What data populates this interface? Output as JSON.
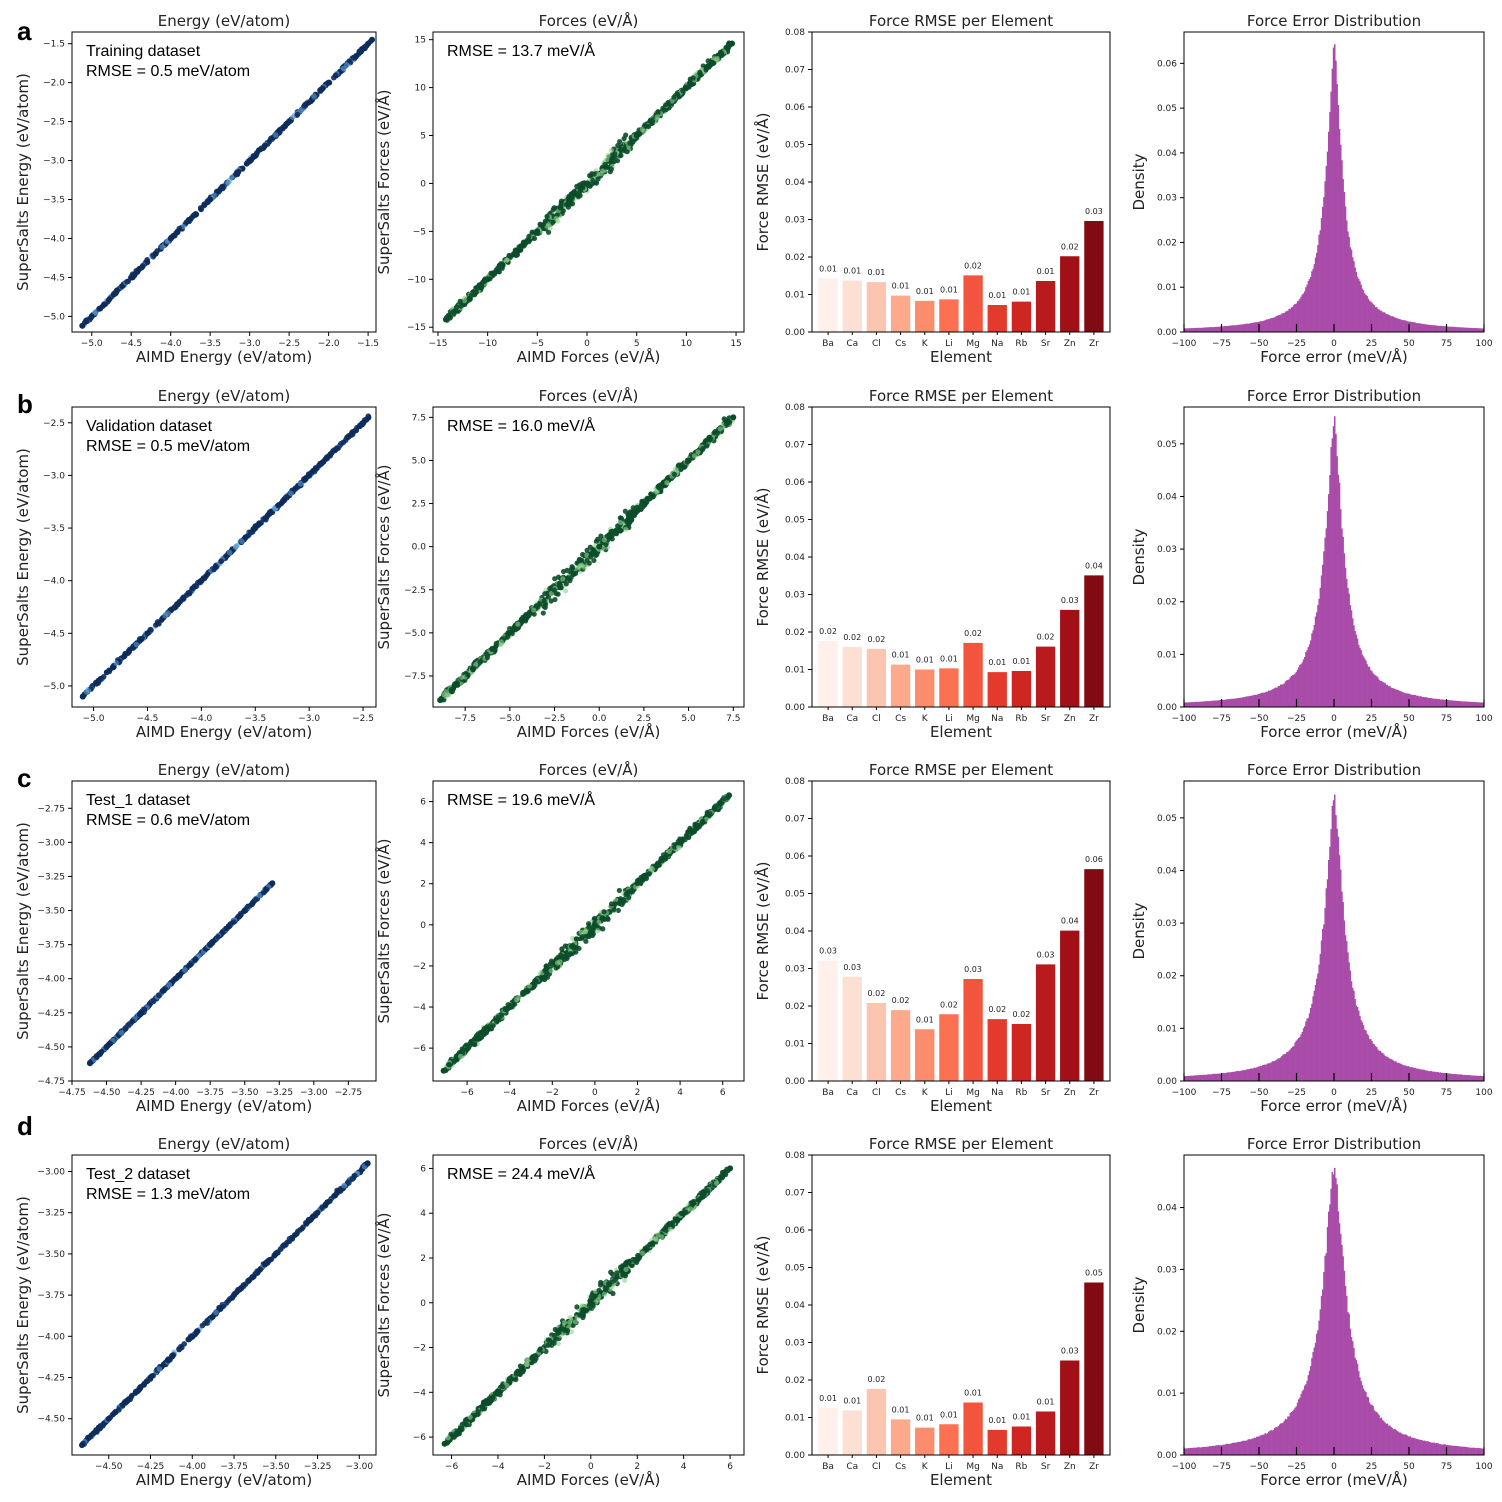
{
  "panel_letters": [
    "a",
    "b",
    "c",
    "d"
  ],
  "colors": {
    "energy_points": "#0d2c5c",
    "energy_light": "#5b9bd5",
    "force_points": "#0b4d2a",
    "force_light": "#8fd18c",
    "hist": "#a94ca9",
    "reds": [
      "#fff0eb",
      "#fde0d4",
      "#fcc5b0",
      "#fca98c",
      "#fc8d6c",
      "#fb7151",
      "#f2543d",
      "#e33a2d",
      "#d02623",
      "#b81a1d",
      "#a01016",
      "#820a12"
    ]
  },
  "chart_data": [
    {
      "id": "a-energy",
      "type": "scatter",
      "title": "Energy (eV/atom)",
      "xlabel": "AIMD Energy (eV/atom)",
      "ylabel": "SuperSalts Energy (eV/atom)",
      "xlim": [
        -5.25,
        -1.4
      ],
      "ylim": [
        -5.2,
        -1.35
      ],
      "xticks": [
        -5.0,
        -4.5,
        -4.0,
        -3.5,
        -3.0,
        -2.5,
        -2.0,
        -1.5
      ],
      "yticks": [
        -5.0,
        -4.5,
        -4.0,
        -3.5,
        -3.0,
        -2.5,
        -2.0,
        -1.5
      ],
      "x": [
        -5.12,
        -5.0,
        -4.5,
        -4.0,
        -3.5,
        -3.0,
        -2.5,
        -2.0,
        -1.5,
        -1.45
      ],
      "y": [
        -5.12,
        -5.0,
        -4.5,
        -4.0,
        -3.5,
        -3.0,
        -2.5,
        -2.0,
        -1.5,
        -1.45
      ],
      "annotation": [
        "Training dataset",
        "RMSE = 0.5 meV/atom"
      ],
      "diagonal": false
    },
    {
      "id": "a-forces",
      "type": "scatter",
      "title": "Forces (eV/Å)",
      "xlabel": "AIMD Forces (eV/Å)",
      "ylabel": "SuperSalts Forces (eV/Å)",
      "xlim": [
        -15.5,
        15.8
      ],
      "ylim": [
        -15.5,
        15.8
      ],
      "xticks": [
        -15,
        -10,
        -5,
        0,
        5,
        10,
        15
      ],
      "yticks": [
        -15,
        -10,
        -5,
        0,
        5,
        10,
        15
      ],
      "x": [
        -14.2,
        -10,
        -5,
        0,
        5,
        10,
        14.6
      ],
      "y": [
        -14.2,
        -10,
        -5,
        0,
        5,
        10,
        14.6
      ],
      "annotation": [
        "RMSE = 13.7 meV/Å"
      ],
      "diagonal": true
    },
    {
      "id": "a-rmse",
      "type": "bar",
      "title": "Force RMSE per Element",
      "xlabel": "Element",
      "ylabel": "Force RMSE (eV/Å)",
      "categories": [
        "Ba",
        "Ca",
        "Cl",
        "Cs",
        "K",
        "Li",
        "Mg",
        "Na",
        "Rb",
        "Sr",
        "Zn",
        "Zr"
      ],
      "values": [
        0.0143,
        0.0137,
        0.0133,
        0.0097,
        0.0083,
        0.0087,
        0.0151,
        0.0072,
        0.0081,
        0.0136,
        0.0202,
        0.0296
      ],
      "labels": [
        "0.01",
        "0.01",
        "0.01",
        "0.01",
        "0.01",
        "0.01",
        "0.02",
        "0.01",
        "0.01",
        "0.01",
        "0.02",
        "0.03"
      ],
      "ylim": [
        0,
        0.08
      ],
      "yticks": [
        "0.00",
        "0.01",
        "0.02",
        "0.03",
        "0.04",
        "0.05",
        "0.06",
        "0.07",
        "0.08"
      ]
    },
    {
      "id": "a-hist",
      "type": "area",
      "title": "Force Error Distribution",
      "xlabel": "Force error (meV/Å)",
      "ylabel": "Density",
      "xlim": [
        -100,
        100
      ],
      "xticks": [
        -100,
        -75,
        -50,
        -25,
        0,
        25,
        50,
        75,
        100
      ],
      "ylim": [
        0,
        0.067
      ],
      "yticks": [
        "0.00",
        "0.01",
        "0.02",
        "0.03",
        "0.04",
        "0.05",
        "0.06"
      ],
      "peak": 0.0635,
      "scale": 6.5
    },
    {
      "id": "b-energy",
      "type": "scatter",
      "title": "Energy (eV/atom)",
      "xlabel": "AIMD Energy (eV/atom)",
      "ylabel": "SuperSalts Energy (eV/atom)",
      "xlim": [
        -5.2,
        -2.38
      ],
      "ylim": [
        -5.2,
        -2.35
      ],
      "xticks": [
        -5.0,
        -4.5,
        -4.0,
        -3.5,
        -3.0,
        -2.5
      ],
      "yticks": [
        -5.0,
        -4.5,
        -4.0,
        -3.5,
        -3.0,
        -2.5
      ],
      "x": [
        -5.1,
        -4.5,
        -4.0,
        -3.5,
        -3.0,
        -2.45
      ],
      "y": [
        -5.1,
        -4.5,
        -4.0,
        -3.5,
        -3.0,
        -2.45
      ],
      "annotation": [
        "Validation dataset",
        "RMSE = 0.5 meV/atom"
      ],
      "diagonal": false
    },
    {
      "id": "b-forces",
      "type": "scatter",
      "title": "Forces (eV/Å)",
      "xlabel": "AIMD Forces (eV/Å)",
      "ylabel": "SuperSalts Forces (eV/Å)",
      "xlim": [
        -9.3,
        8.1
      ],
      "ylim": [
        -9.3,
        8.1
      ],
      "xticks": [
        "-7.5",
        "-5.0",
        "-2.5",
        "0.0",
        "2.5",
        "5.0",
        "7.5"
      ],
      "yticks": [
        "-7.5",
        "-5.0",
        "-2.5",
        "0.0",
        "2.5",
        "5.0",
        "7.5"
      ],
      "x": [
        -8.9,
        -5,
        0,
        5,
        7.5
      ],
      "y": [
        -8.9,
        -5,
        0,
        5,
        7.5
      ],
      "annotation": [
        "RMSE = 16.0 meV/Å"
      ],
      "diagonal": true
    },
    {
      "id": "b-rmse",
      "type": "bar",
      "title": "Force RMSE per Element",
      "xlabel": "Element",
      "ylabel": "Force RMSE (eV/Å)",
      "categories": [
        "Ba",
        "Ca",
        "Cl",
        "Cs",
        "K",
        "Li",
        "Mg",
        "Na",
        "Rb",
        "Sr",
        "Zn",
        "Zr"
      ],
      "values": [
        0.0176,
        0.016,
        0.0155,
        0.0113,
        0.01,
        0.0103,
        0.0171,
        0.0093,
        0.0096,
        0.0161,
        0.0259,
        0.0351
      ],
      "labels": [
        "0.02",
        "0.02",
        "0.02",
        "0.01",
        "0.01",
        "0.01",
        "0.02",
        "0.01",
        "0.01",
        "0.02",
        "0.03",
        "0.04"
      ],
      "ylim": [
        0,
        0.08
      ],
      "yticks": [
        "0.00",
        "0.01",
        "0.02",
        "0.03",
        "0.04",
        "0.05",
        "0.06",
        "0.07",
        "0.08"
      ]
    },
    {
      "id": "b-hist",
      "type": "area",
      "title": "Force Error Distribution",
      "xlabel": "Force error (meV/Å)",
      "ylabel": "Density",
      "xlim": [
        -100,
        100
      ],
      "xticks": [
        -100,
        -75,
        -50,
        -25,
        0,
        25,
        50,
        75,
        100
      ],
      "ylim": [
        0,
        0.057
      ],
      "yticks": [
        "0.00",
        "0.01",
        "0.02",
        "0.03",
        "0.04",
        "0.05"
      ],
      "peak": 0.0543,
      "scale": 7.5
    },
    {
      "id": "c-energy",
      "type": "scatter",
      "title": "Energy (eV/atom)",
      "xlabel": "AIMD Energy (eV/atom)",
      "ylabel": "SuperSalts Energy (eV/atom)",
      "xlim": [
        -4.75,
        -2.55
      ],
      "ylim": [
        -4.75,
        -2.55
      ],
      "xticks": [
        "-4.75",
        "-4.50",
        "-4.25",
        "-4.00",
        "-3.75",
        "-3.50",
        "-3.25",
        "-3.00",
        "-2.75"
      ],
      "yticks": [
        "-4.75",
        "-4.50",
        "-4.25",
        "-4.00",
        "-3.75",
        "-3.50",
        "-3.25",
        "-3.00",
        "-2.75"
      ],
      "x": [
        -4.62,
        -4.5,
        -4.25,
        -4.0,
        -3.75,
        -3.5,
        -3.3
      ],
      "y": [
        -4.62,
        -4.5,
        -4.25,
        -4.0,
        -3.75,
        -3.5,
        -3.3
      ],
      "annotation": [
        "Test_1 dataset",
        "RMSE = 0.6 meV/atom"
      ],
      "diagonal": true
    },
    {
      "id": "c-forces",
      "type": "scatter",
      "title": "Forces (eV/Å)",
      "xlabel": "AIMD Forces (eV/Å)",
      "ylabel": "SuperSalts Forces (eV/Å)",
      "xlim": [
        -7.6,
        7.0
      ],
      "ylim": [
        -7.6,
        7.0
      ],
      "xticks": [
        -6,
        -4,
        -2,
        0,
        2,
        4,
        6
      ],
      "yticks": [
        -6,
        -4,
        -2,
        0,
        2,
        4,
        6
      ],
      "x": [
        -7.1,
        -4,
        0,
        4,
        6.3
      ],
      "y": [
        -7.1,
        -4,
        0,
        4,
        6.3
      ],
      "annotation": [
        "RMSE = 19.6 meV/Å"
      ],
      "diagonal": true
    },
    {
      "id": "c-rmse",
      "type": "bar",
      "title": "Force RMSE per Element",
      "xlabel": "Element",
      "ylabel": "Force RMSE (eV/Å)",
      "categories": [
        "Ba",
        "Ca",
        "Cl",
        "Cs",
        "K",
        "Li",
        "Mg",
        "Na",
        "Rb",
        "Sr",
        "Zn",
        "Zr"
      ],
      "values": [
        0.0321,
        0.0278,
        0.0208,
        0.0189,
        0.0138,
        0.0178,
        0.0272,
        0.0165,
        0.0152,
        0.0311,
        0.0401,
        0.0565
      ],
      "labels": [
        "0.03",
        "0.03",
        "0.02",
        "0.02",
        "0.01",
        "0.02",
        "0.03",
        "0.02",
        "0.02",
        "0.03",
        "0.04",
        "0.06"
      ],
      "ylim": [
        0,
        0.08
      ],
      "yticks": [
        "0.00",
        "0.01",
        "0.02",
        "0.03",
        "0.04",
        "0.05",
        "0.06",
        "0.07",
        "0.08"
      ]
    },
    {
      "id": "c-hist",
      "type": "area",
      "title": "Force Error Distribution",
      "xlabel": "Force error (meV/Å)",
      "ylabel": "Density",
      "xlim": [
        -100,
        100
      ],
      "xticks": [
        -100,
        -75,
        -50,
        -25,
        0,
        25,
        50,
        75,
        100
      ],
      "ylim": [
        0,
        0.057
      ],
      "yticks": [
        "0.00",
        "0.01",
        "0.02",
        "0.03",
        "0.04",
        "0.05"
      ],
      "peak": 0.0543,
      "scale": 8
    },
    {
      "id": "d-energy",
      "type": "scatter",
      "title": "Energy (eV/atom)",
      "xlabel": "AIMD Energy (eV/atom)",
      "ylabel": "SuperSalts Energy (eV/atom)",
      "xlim": [
        -4.72,
        -2.9
      ],
      "ylim": [
        -4.72,
        -2.9
      ],
      "xticks": [
        "-4.50",
        "-4.25",
        "-4.00",
        "-3.75",
        "-3.50",
        "-3.25",
        "-3.00"
      ],
      "yticks": [
        "-4.50",
        "-4.25",
        "-4.00",
        "-3.75",
        "-3.50",
        "-3.25",
        "-3.00"
      ],
      "x": [
        -4.66,
        -4.5,
        -4.25,
        -4.0,
        -3.75,
        -3.5,
        -3.25,
        -2.95
      ],
      "y": [
        -4.66,
        -4.5,
        -4.25,
        -4.0,
        -3.75,
        -3.5,
        -3.25,
        -2.95
      ],
      "annotation": [
        "Test_2 dataset",
        "RMSE = 1.3 meV/atom"
      ],
      "diagonal": false
    },
    {
      "id": "d-forces",
      "type": "scatter",
      "title": "Forces (eV/Å)",
      "xlabel": "AIMD Forces (eV/Å)",
      "ylabel": "SuperSalts Forces (eV/Å)",
      "xlim": [
        -6.8,
        6.6
      ],
      "ylim": [
        -6.8,
        6.6
      ],
      "xticks": [
        -6,
        -4,
        -2,
        0,
        2,
        4,
        6
      ],
      "yticks": [
        -6,
        -4,
        -2,
        0,
        2,
        4,
        6
      ],
      "x": [
        -6.3,
        -4,
        0,
        4,
        6.0
      ],
      "y": [
        -6.3,
        -4,
        0,
        4,
        6.0
      ],
      "annotation": [
        "RMSE = 24.4 meV/Å"
      ],
      "diagonal": true
    },
    {
      "id": "d-rmse",
      "type": "bar",
      "title": "Force RMSE per Element",
      "xlabel": "Element",
      "ylabel": "Force RMSE (eV/Å)",
      "categories": [
        "Ba",
        "Ca",
        "Cl",
        "Cs",
        "K",
        "Li",
        "Mg",
        "Na",
        "Rb",
        "Sr",
        "Zn",
        "Zr"
      ],
      "values": [
        0.0126,
        0.0119,
        0.0176,
        0.0095,
        0.0073,
        0.0082,
        0.014,
        0.0067,
        0.0076,
        0.0116,
        0.0252,
        0.046
      ],
      "labels": [
        "0.01",
        "0.01",
        "0.02",
        "0.01",
        "0.01",
        "0.01",
        "0.01",
        "0.01",
        "0.01",
        "0.01",
        "0.03",
        "0.05"
      ],
      "ylim": [
        0,
        0.08
      ],
      "yticks": [
        "0.00",
        "0.01",
        "0.02",
        "0.03",
        "0.04",
        "0.05",
        "0.06",
        "0.07",
        "0.08"
      ]
    },
    {
      "id": "d-hist",
      "type": "area",
      "title": "Force Error Distribution",
      "xlabel": "Force error (meV/Å)",
      "ylabel": "Density",
      "xlim": [
        -100,
        100
      ],
      "xticks": [
        -100,
        -75,
        -50,
        -25,
        0,
        25,
        50,
        75,
        100
      ],
      "ylim": [
        0,
        0.0485
      ],
      "yticks": [
        "0.00",
        "0.01",
        "0.02",
        "0.03",
        "0.04"
      ],
      "peak": 0.0463,
      "scale": 9.5
    }
  ]
}
